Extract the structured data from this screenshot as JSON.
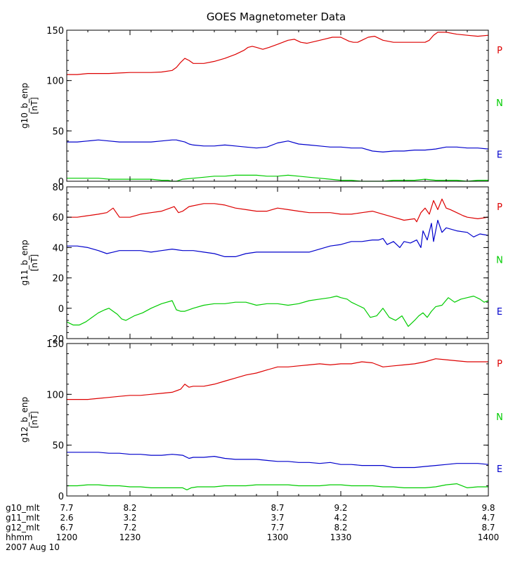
{
  "chart_data": {
    "type": "line",
    "title": "GOES Magnetometer Data",
    "x_range": [
      1200,
      1400
    ],
    "grid": false,
    "panels": [
      {
        "ylabel": "g10_b_enp",
        "unit": "[nT]",
        "ylim": [
          0,
          150
        ],
        "yticks": [
          0,
          50,
          100,
          150
        ],
        "legend": [
          "P",
          "N",
          "E"
        ],
        "series": [
          {
            "name": "P",
            "color": "#dd0000",
            "x": [
              1200,
              1205,
              1210,
              1215,
              1220,
              1225,
              1230,
              1235,
              1240,
              1245,
              1250,
              1252,
              1254,
              1256,
              1258,
              1260,
              1265,
              1270,
              1275,
              1280,
              1284,
              1286,
              1288,
              1290,
              1293,
              1296,
              1300,
              1305,
              1308,
              1311,
              1314,
              1318,
              1322,
              1326,
              1330,
              1334,
              1336,
              1338,
              1340,
              1343,
              1346,
              1350,
              1355,
              1360,
              1365,
              1370,
              1372,
              1374,
              1376,
              1380,
              1385,
              1390,
              1395,
              1400
            ],
            "y": [
              106,
              106,
              107,
              107,
              107,
              107.5,
              108,
              108,
              108,
              108.5,
              110,
              113,
              118,
              122,
              120,
              117,
              117,
              119,
              122,
              126,
              130,
              133,
              134,
              133,
              131,
              133,
              136,
              140,
              141,
              138,
              137,
              139,
              141,
              143,
              143,
              139,
              138,
              138,
              140,
              143,
              144,
              140,
              138,
              138,
              138,
              138,
              140,
              145,
              148,
              148,
              146,
              145,
              144,
              145
            ]
          },
          {
            "name": "E",
            "color": "#0000cc",
            "x": [
              1200,
              1205,
              1210,
              1215,
              1220,
              1225,
              1230,
              1235,
              1240,
              1245,
              1250,
              1252,
              1254,
              1256,
              1258,
              1260,
              1265,
              1270,
              1275,
              1280,
              1285,
              1290,
              1295,
              1300,
              1305,
              1310,
              1315,
              1320,
              1325,
              1330,
              1335,
              1340,
              1345,
              1350,
              1355,
              1360,
              1365,
              1370,
              1375,
              1380,
              1385,
              1390,
              1395,
              1400
            ],
            "y": [
              39,
              39,
              40,
              41,
              40,
              39,
              39,
              39,
              39,
              40,
              41,
              41,
              40,
              39,
              37,
              36,
              35,
              35,
              36,
              35,
              34,
              33,
              34,
              38,
              40,
              37,
              36,
              35,
              34,
              34,
              33,
              33,
              30,
              29,
              30,
              30,
              31,
              31,
              32,
              34,
              34,
              33,
              33,
              32
            ]
          },
          {
            "name": "N",
            "color": "#00cc00",
            "x": [
              1200,
              1205,
              1210,
              1215,
              1220,
              1225,
              1230,
              1235,
              1240,
              1245,
              1248,
              1250,
              1252,
              1255,
              1260,
              1265,
              1270,
              1275,
              1280,
              1285,
              1290,
              1295,
              1300,
              1305,
              1310,
              1315,
              1320,
              1325,
              1330,
              1335,
              1340,
              1345,
              1350,
              1355,
              1360,
              1365,
              1370,
              1375,
              1380,
              1385,
              1390,
              1395,
              1400
            ],
            "y": [
              3,
              3,
              3,
              3,
              2,
              2,
              2,
              2,
              2,
              1,
              1,
              0,
              0,
              2,
              3,
              4,
              5,
              5,
              6,
              6,
              6,
              5,
              5,
              6,
              5,
              4,
              3,
              2,
              1,
              1,
              0,
              0,
              0,
              1,
              1,
              1,
              2,
              1,
              1,
              1,
              0,
              1,
              1
            ]
          }
        ]
      },
      {
        "ylabel": "g11_b_enp",
        "unit": "[nT]",
        "ylim": [
          -20,
          80
        ],
        "yticks": [
          -20,
          0,
          20,
          40,
          60,
          80
        ],
        "legend": [
          "P",
          "N",
          "E"
        ],
        "series": [
          {
            "name": "P",
            "color": "#dd0000",
            "x": [
              1200,
              1205,
              1210,
              1215,
              1219,
              1222,
              1225,
              1230,
              1235,
              1240,
              1245,
              1251,
              1253,
              1255,
              1258,
              1265,
              1270,
              1275,
              1280,
              1285,
              1290,
              1295,
              1300,
              1305,
              1310,
              1315,
              1320,
              1325,
              1330,
              1335,
              1340,
              1345,
              1350,
              1355,
              1360,
              1365,
              1366,
              1368,
              1370,
              1372,
              1374,
              1376,
              1378,
              1380,
              1382,
              1385,
              1388,
              1390,
              1395,
              1400
            ],
            "y": [
              60,
              60,
              61,
              62,
              63,
              66,
              60,
              60,
              62,
              63,
              64,
              67,
              63,
              64,
              67,
              69,
              69,
              68,
              66,
              65,
              64,
              64,
              66,
              65,
              64,
              63,
              63,
              63,
              62,
              62,
              63,
              64,
              62,
              60,
              58,
              59,
              57,
              63,
              66,
              62,
              71,
              65,
              72,
              66,
              65,
              63,
              61,
              60,
              59,
              60
            ]
          },
          {
            "name": "E",
            "color": "#0000cc",
            "x": [
              1200,
              1205,
              1210,
              1215,
              1219,
              1222,
              1225,
              1230,
              1235,
              1240,
              1245,
              1250,
              1255,
              1260,
              1265,
              1270,
              1275,
              1280,
              1285,
              1290,
              1295,
              1300,
              1305,
              1310,
              1315,
              1320,
              1325,
              1330,
              1335,
              1340,
              1345,
              1348,
              1350,
              1352,
              1355,
              1358,
              1360,
              1363,
              1366,
              1368,
              1369,
              1371,
              1373,
              1374,
              1376,
              1378,
              1380,
              1385,
              1390,
              1393,
              1396,
              1400
            ],
            "y": [
              41,
              41,
              40,
              38,
              36,
              37,
              38,
              38,
              38,
              37,
              38,
              39,
              38,
              38,
              37,
              36,
              34,
              34,
              36,
              37,
              37,
              37,
              37,
              37,
              37,
              39,
              41,
              42,
              44,
              44,
              45,
              45,
              46,
              42,
              44,
              40,
              44,
              43,
              45,
              40,
              51,
              45,
              56,
              44,
              58,
              50,
              53,
              51,
              50,
              47,
              49,
              48
            ]
          },
          {
            "name": "N",
            "color": "#00cc00",
            "x": [
              1200,
              1203,
              1206,
              1209,
              1212,
              1215,
              1218,
              1220,
              1222,
              1224,
              1226,
              1228,
              1232,
              1236,
              1240,
              1245,
              1250,
              1252,
              1254,
              1256,
              1260,
              1265,
              1270,
              1275,
              1280,
              1285,
              1290,
              1295,
              1300,
              1305,
              1310,
              1315,
              1320,
              1325,
              1328,
              1330,
              1333,
              1335,
              1338,
              1341,
              1344,
              1347,
              1350,
              1353,
              1356,
              1359,
              1362,
              1365,
              1367,
              1369,
              1371,
              1373,
              1375,
              1378,
              1381,
              1384,
              1387,
              1390,
              1393,
              1396,
              1398,
              1400
            ],
            "y": [
              -9,
              -11,
              -11,
              -9,
              -6,
              -3,
              -1,
              0,
              -2,
              -4,
              -7,
              -8,
              -5,
              -3,
              0,
              3,
              5,
              -1,
              -2,
              -2,
              0,
              2,
              3,
              3,
              4,
              4,
              2,
              3,
              3,
              2,
              3,
              5,
              6,
              7,
              8,
              7,
              6,
              4,
              2,
              0,
              -6,
              -5,
              0,
              -6,
              -8,
              -5,
              -12,
              -8,
              -5,
              -3,
              -6,
              -2,
              1,
              2,
              7,
              4,
              6,
              7,
              8,
              6,
              4,
              5
            ]
          }
        ]
      },
      {
        "ylabel": "g12_b_enp",
        "unit": "[nT]",
        "ylim": [
          0,
          150
        ],
        "yticks": [
          0,
          50,
          100,
          150
        ],
        "legend": [
          "P",
          "N",
          "E"
        ],
        "series": [
          {
            "name": "P",
            "color": "#dd0000",
            "x": [
              1200,
              1210,
              1215,
              1220,
              1225,
              1230,
              1235,
              1240,
              1245,
              1250,
              1254,
              1256,
              1258,
              1260,
              1265,
              1270,
              1275,
              1280,
              1285,
              1290,
              1295,
              1300,
              1305,
              1310,
              1315,
              1320,
              1325,
              1330,
              1335,
              1340,
              1345,
              1350,
              1355,
              1360,
              1365,
              1370,
              1375,
              1380,
              1385,
              1390,
              1395,
              1400
            ],
            "y": [
              95,
              95,
              96,
              97,
              98,
              99,
              99,
              100,
              101,
              102,
              105,
              110,
              107,
              108,
              108,
              110,
              113,
              116,
              119,
              121,
              124,
              127,
              127,
              128,
              129,
              130,
              129,
              130,
              130,
              132,
              131,
              127,
              128,
              129,
              130,
              132,
              135,
              134,
              133,
              132,
              132,
              132
            ]
          },
          {
            "name": "E",
            "color": "#0000cc",
            "x": [
              1200,
              1205,
              1210,
              1215,
              1220,
              1225,
              1230,
              1235,
              1240,
              1245,
              1250,
              1255,
              1258,
              1260,
              1265,
              1270,
              1275,
              1280,
              1285,
              1290,
              1295,
              1300,
              1305,
              1310,
              1315,
              1320,
              1325,
              1330,
              1335,
              1340,
              1345,
              1350,
              1355,
              1360,
              1365,
              1370,
              1375,
              1380,
              1385,
              1390,
              1395,
              1400
            ],
            "y": [
              43,
              43,
              43,
              43,
              42,
              42,
              41,
              41,
              40,
              40,
              41,
              40,
              37,
              38,
              38,
              39,
              37,
              36,
              36,
              36,
              35,
              34,
              34,
              33,
              33,
              32,
              33,
              31,
              31,
              30,
              30,
              30,
              28,
              28,
              28,
              29,
              30,
              31,
              32,
              32,
              32,
              31
            ]
          },
          {
            "name": "N",
            "color": "#00cc00",
            "x": [
              1200,
              1205,
              1210,
              1215,
              1220,
              1225,
              1230,
              1235,
              1240,
              1245,
              1250,
              1255,
              1257,
              1259,
              1262,
              1265,
              1270,
              1275,
              1280,
              1285,
              1290,
              1295,
              1300,
              1305,
              1310,
              1315,
              1320,
              1325,
              1330,
              1335,
              1340,
              1345,
              1350,
              1355,
              1360,
              1365,
              1370,
              1375,
              1380,
              1385,
              1390,
              1395,
              1400
            ],
            "y": [
              10,
              10,
              11,
              11,
              10,
              10,
              9,
              9,
              8,
              8,
              8,
              8,
              6,
              8,
              9,
              9,
              9,
              10,
              10,
              10,
              11,
              11,
              11,
              11,
              10,
              10,
              10,
              11,
              11,
              10,
              10,
              10,
              9,
              9,
              8,
              8,
              8,
              9,
              11,
              12,
              8,
              9,
              9
            ]
          }
        ]
      }
    ],
    "x_axis_rows": [
      {
        "label": "g10_mlt",
        "values": [
          "7.7",
          "8.2",
          "8.7",
          "9.2",
          "9.8"
        ]
      },
      {
        "label": "g11_mlt",
        "values": [
          "2.6",
          "3.2",
          "3.7",
          "4.2",
          "4.7"
        ]
      },
      {
        "label": "g12_mlt",
        "values": [
          "6.7",
          "7.2",
          "7.7",
          "8.2",
          "8.7"
        ]
      },
      {
        "label": "hhmm",
        "values": [
          "1200",
          "1230",
          "1300",
          "1330",
          "1400"
        ]
      }
    ],
    "x_tick_positions": [
      1200,
      1230,
      1300,
      1330,
      1400
    ],
    "date_label": "2007 Aug 10"
  }
}
